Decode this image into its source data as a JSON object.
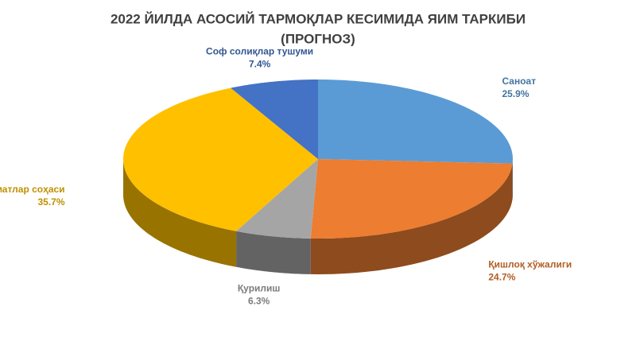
{
  "chart_data": {
    "type": "pie3d",
    "title": "2022 ЙИЛДА АСОСИЙ ТАРМОҚЛАР КЕСИМИДА ЯИМ ТАРКИБИ",
    "subtitle": "(ПРОГНОЗ)",
    "categories": [
      "Саноат",
      "Қишлоқ хўжалиги",
      "Қурилиш",
      "Хизматлар соҳаси",
      "Соф солиқлар тушуми"
    ],
    "values": [
      25.9,
      24.7,
      6.3,
      35.7,
      7.4
    ],
    "value_labels": [
      "25.9%",
      "24.7%",
      "6.3%",
      "35.7%",
      "7.4%"
    ],
    "colors": [
      "#5b9bd5",
      "#ed7d31",
      "#a5a5a5",
      "#ffc000",
      "#4472c4"
    ]
  }
}
